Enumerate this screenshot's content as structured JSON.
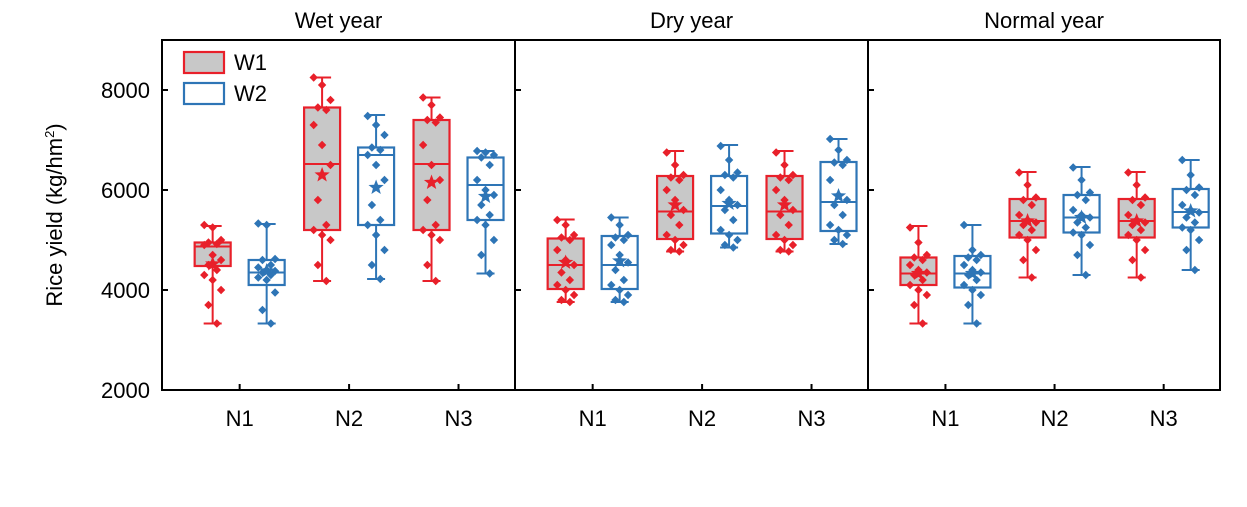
{
  "chart_data": {
    "type": "box",
    "ylabel": "Rice yield (kg/hm",
    "ylabel_sup": "2",
    "ylabel_close": ")",
    "ylim": [
      2000,
      9000
    ],
    "yticks": [
      2000,
      4000,
      6000,
      8000
    ],
    "ytick_labels": [
      "2000",
      "4000",
      "6000",
      "8000"
    ],
    "categories": [
      "N1",
      "N2",
      "N3"
    ],
    "legend": {
      "placement": "top-left",
      "entries": [
        {
          "label": "W1",
          "color": "#e8202a",
          "fill": "#c8c8c8"
        },
        {
          "label": "W2",
          "color": "#2e75b6",
          "fill": "#ffffff"
        }
      ]
    },
    "series_colors": {
      "W1": "#e8202a",
      "W2": "#2e75b6"
    },
    "panels": [
      {
        "title": "Wet year",
        "groups": [
          {
            "category": "N1",
            "boxes": [
              {
                "series": "W1",
                "min": 3330,
                "q1": 4480,
                "median": 4870,
                "q3": 4950,
                "max": 5280,
                "mean": 4520,
                "points": [
                  5300,
                  5250,
                  5000,
                  4950,
                  4920,
                  4900,
                  4700,
                  4600,
                  4500,
                  4400,
                  4300,
                  4200,
                  4000,
                  3700,
                  3330
                ]
              },
              {
                "series": "W2",
                "min": 3330,
                "q1": 4100,
                "median": 4350,
                "q3": 4600,
                "max": 5320,
                "mean": 4380,
                "points": [
                  5330,
                  5300,
                  4620,
                  4600,
                  4500,
                  4450,
                  4400,
                  4380,
                  4350,
                  4300,
                  4250,
                  4200,
                  3950,
                  3600,
                  3330
                ]
              }
            ]
          },
          {
            "category": "N2",
            "boxes": [
              {
                "series": "W1",
                "min": 4180,
                "q1": 5200,
                "median": 6520,
                "q3": 7650,
                "max": 8250,
                "mean": 6300,
                "points": [
                  8250,
                  8100,
                  7800,
                  7650,
                  7600,
                  7300,
                  6900,
                  6500,
                  5800,
                  5300,
                  5200,
                  5100,
                  5000,
                  4500,
                  4180
                ]
              },
              {
                "series": "W2",
                "min": 4220,
                "q1": 5300,
                "median": 6700,
                "q3": 6850,
                "max": 7500,
                "mean": 6050,
                "points": [
                  7480,
                  7300,
                  7100,
                  6850,
                  6800,
                  6700,
                  6500,
                  6200,
                  5700,
                  5400,
                  5300,
                  5100,
                  4800,
                  4500,
                  4220
                ]
              }
            ]
          },
          {
            "category": "N3",
            "boxes": [
              {
                "series": "W1",
                "min": 4180,
                "q1": 5200,
                "median": 6520,
                "q3": 7400,
                "max": 7850,
                "mean": 6150,
                "points": [
                  7850,
                  7700,
                  7450,
                  7400,
                  7350,
                  6900,
                  6500,
                  6200,
                  5800,
                  5300,
                  5200,
                  5100,
                  5000,
                  4500,
                  4180
                ]
              },
              {
                "series": "W2",
                "min": 4330,
                "q1": 5400,
                "median": 6100,
                "q3": 6650,
                "max": 6780,
                "mean": 5870,
                "points": [
                  6780,
                  6750,
                  6700,
                  6650,
                  6500,
                  6200,
                  6000,
                  5900,
                  5700,
                  5500,
                  5400,
                  5300,
                  5000,
                  4700,
                  4330
                ]
              }
            ]
          }
        ]
      },
      {
        "title": "Dry year",
        "groups": [
          {
            "category": "N1",
            "boxes": [
              {
                "series": "W1",
                "min": 3760,
                "q1": 4020,
                "median": 4500,
                "q3": 5030,
                "max": 5410,
                "mean": 4550,
                "points": [
                  5400,
                  5300,
                  5100,
                  5050,
                  5000,
                  4800,
                  4600,
                  4500,
                  4350,
                  4200,
                  4100,
                  4000,
                  3900,
                  3800,
                  3760
                ]
              },
              {
                "series": "W2",
                "min": 3760,
                "q1": 4020,
                "median": 4500,
                "q3": 5080,
                "max": 5450,
                "mean": 4580,
                "points": [
                  5450,
                  5300,
                  5100,
                  5050,
                  5000,
                  4900,
                  4700,
                  4550,
                  4400,
                  4200,
                  4100,
                  4000,
                  3900,
                  3800,
                  3760
                ]
              }
            ]
          },
          {
            "category": "N2",
            "boxes": [
              {
                "series": "W1",
                "min": 4770,
                "q1": 5020,
                "median": 5570,
                "q3": 6280,
                "max": 6780,
                "mean": 5700,
                "points": [
                  6750,
                  6500,
                  6300,
                  6250,
                  6200,
                  6000,
                  5800,
                  5600,
                  5500,
                  5300,
                  5100,
                  5000,
                  4900,
                  4800,
                  4770
                ]
              },
              {
                "series": "W2",
                "min": 4850,
                "q1": 5130,
                "median": 5680,
                "q3": 6280,
                "max": 6900,
                "mean": 5730,
                "points": [
                  6880,
                  6600,
                  6350,
                  6300,
                  6250,
                  6000,
                  5800,
                  5700,
                  5600,
                  5400,
                  5200,
                  5100,
                  5000,
                  4900,
                  4850
                ]
              }
            ]
          },
          {
            "category": "N3",
            "boxes": [
              {
                "series": "W1",
                "min": 4770,
                "q1": 5020,
                "median": 5570,
                "q3": 6280,
                "max": 6780,
                "mean": 5700,
                "points": [
                  6750,
                  6500,
                  6300,
                  6250,
                  6200,
                  6000,
                  5800,
                  5600,
                  5500,
                  5300,
                  5100,
                  5000,
                  4900,
                  4800,
                  4770
                ]
              },
              {
                "series": "W2",
                "min": 4920,
                "q1": 5180,
                "median": 5760,
                "q3": 6560,
                "max": 7020,
                "mean": 5880,
                "points": [
                  7020,
                  6800,
                  6600,
                  6550,
                  6500,
                  6200,
                  5900,
                  5800,
                  5700,
                  5500,
                  5300,
                  5200,
                  5100,
                  5000,
                  4920
                ]
              }
            ]
          }
        ]
      },
      {
        "title": "Normal year",
        "groups": [
          {
            "category": "N1",
            "boxes": [
              {
                "series": "W1",
                "min": 3330,
                "q1": 4100,
                "median": 4330,
                "q3": 4650,
                "max": 5280,
                "mean": 4330,
                "points": [
                  5250,
                  4950,
                  4700,
                  4650,
                  4600,
                  4500,
                  4400,
                  4350,
                  4300,
                  4200,
                  4100,
                  4000,
                  3900,
                  3700,
                  3330
                ]
              },
              {
                "series": "W2",
                "min": 3330,
                "q1": 4050,
                "median": 4330,
                "q3": 4680,
                "max": 5300,
                "mean": 4330,
                "points": [
                  5300,
                  4800,
                  4700,
                  4650,
                  4600,
                  4500,
                  4400,
                  4350,
                  4300,
                  4200,
                  4100,
                  4000,
                  3900,
                  3700,
                  3330
                ]
              }
            ]
          },
          {
            "category": "N2",
            "boxes": [
              {
                "series": "W1",
                "min": 4250,
                "q1": 5050,
                "median": 5380,
                "q3": 5820,
                "max": 6360,
                "mean": 5380,
                "points": [
                  6350,
                  6100,
                  5850,
                  5800,
                  5700,
                  5500,
                  5400,
                  5350,
                  5300,
                  5200,
                  5100,
                  5000,
                  4800,
                  4600,
                  4250
                ]
              },
              {
                "series": "W2",
                "min": 4300,
                "q1": 5150,
                "median": 5450,
                "q3": 5900,
                "max": 6460,
                "mean": 5450,
                "points": [
                  6450,
                  6200,
                  5950,
                  5900,
                  5800,
                  5600,
                  5500,
                  5450,
                  5350,
                  5250,
                  5150,
                  5100,
                  4900,
                  4700,
                  4300
                ]
              }
            ]
          },
          {
            "category": "N3",
            "boxes": [
              {
                "series": "W1",
                "min": 4250,
                "q1": 5050,
                "median": 5380,
                "q3": 5820,
                "max": 6360,
                "mean": 5380,
                "points": [
                  6350,
                  6100,
                  5850,
                  5800,
                  5700,
                  5500,
                  5400,
                  5350,
                  5300,
                  5200,
                  5100,
                  5000,
                  4800,
                  4600,
                  4250
                ]
              },
              {
                "series": "W2",
                "min": 4400,
                "q1": 5250,
                "median": 5560,
                "q3": 6020,
                "max": 6600,
                "mean": 5580,
                "points": [
                  6600,
                  6300,
                  6050,
                  6000,
                  5900,
                  5700,
                  5600,
                  5550,
                  5450,
                  5350,
                  5250,
                  5200,
                  5000,
                  4800,
                  4400
                ]
              }
            ]
          }
        ]
      }
    ]
  }
}
